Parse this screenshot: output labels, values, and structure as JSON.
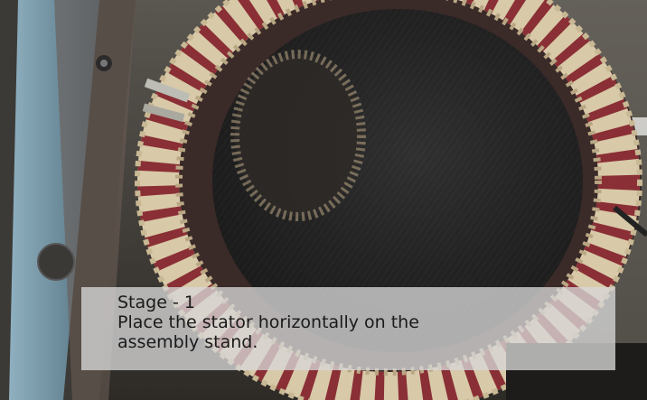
{
  "caption": {
    "stage": "Stage - 1",
    "line1": "Place the stator horizontally on the",
    "line2": "assembly stand."
  },
  "photo": {
    "subject": "stator-winding-photo",
    "colors": {
      "frame_blue": "#6f8fa0",
      "core_dark": "#262626",
      "copper": "#8a2f35",
      "tape": "#d8c9a8",
      "floor": "#4a4640"
    }
  }
}
